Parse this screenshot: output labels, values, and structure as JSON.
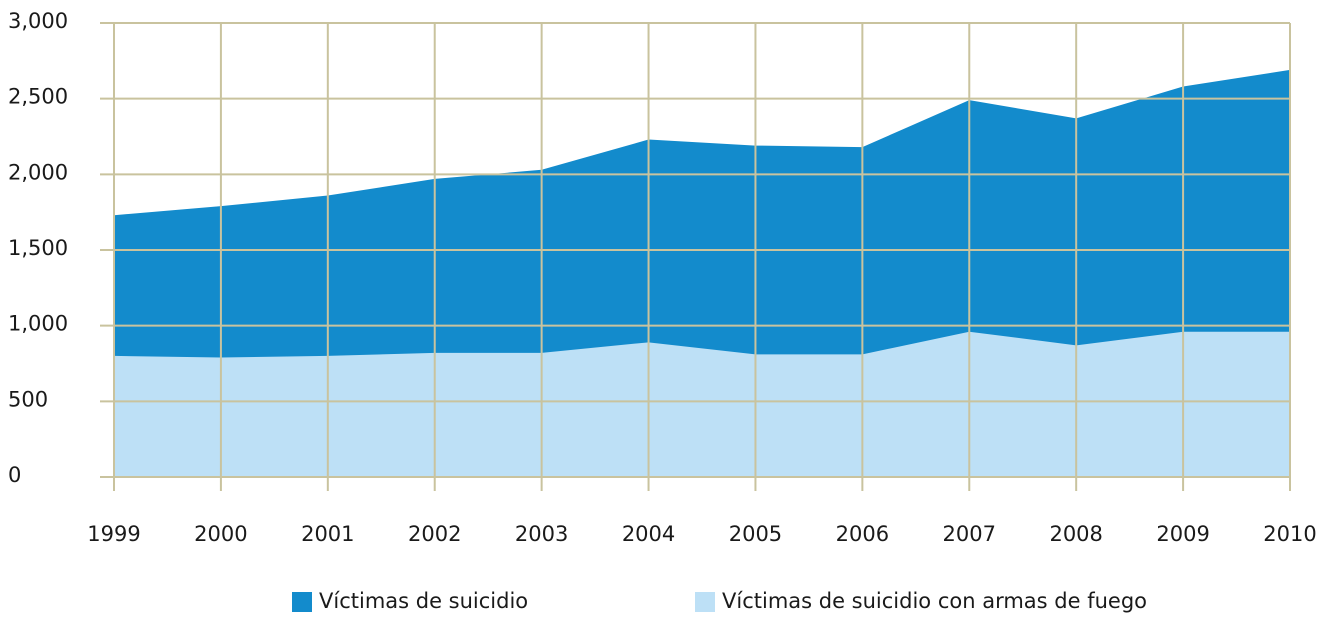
{
  "chart_data": {
    "type": "area",
    "x": [
      1999,
      2000,
      2001,
      2002,
      2003,
      2004,
      2005,
      2006,
      2007,
      2008,
      2009,
      2010
    ],
    "xlim": [
      1999,
      2010
    ],
    "xticks": [
      1999,
      2000,
      2001,
      2002,
      2003,
      2004,
      2005,
      2006,
      2007,
      2008,
      2009,
      2010
    ],
    "ylim": [
      0,
      3000
    ],
    "yticks": [
      0,
      500,
      {
        "value": 1000,
        "label": "1,000"
      },
      {
        "value": 1500,
        "label": "1,500"
      },
      {
        "value": 2000,
        "label": "2,000"
      },
      {
        "value": 2500,
        "label": "2,500"
      },
      {
        "value": 3000,
        "label": "3,000"
      }
    ],
    "grid": true,
    "legend": "bottom",
    "series": [
      {
        "name": "Víctimas de suicidio",
        "color": "#138bcc",
        "values": [
          1730,
          1790,
          1860,
          1970,
          2030,
          2230,
          2190,
          2180,
          2490,
          2370,
          2580,
          2690
        ]
      },
      {
        "name": "Víctimas de suicidio con armas de fuego",
        "color": "#bde0f6",
        "values": [
          800,
          790,
          800,
          820,
          820,
          890,
          810,
          810,
          960,
          870,
          960,
          960
        ]
      }
    ]
  }
}
